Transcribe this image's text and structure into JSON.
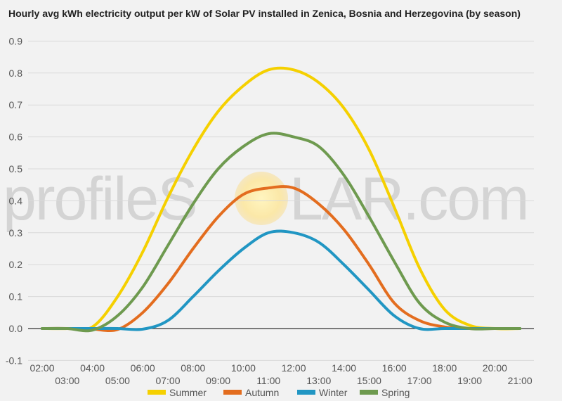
{
  "watermark": {
    "text_before": "profileS",
    "text_after": "LAR.com"
  },
  "chart_data": {
    "type": "line",
    "title": "Hourly avg kWh electricity output per kW of Solar PV installed in Zenica, Bosnia and Herzegovina (by season)",
    "xlabel": "",
    "ylabel": "",
    "x": [
      2,
      3,
      4,
      5,
      6,
      7,
      8,
      9,
      10,
      11,
      12,
      13,
      14,
      15,
      16,
      17,
      18,
      19,
      20,
      21
    ],
    "x_tick_labels": [
      "02:00",
      "03:00",
      "04:00",
      "05:00",
      "06:00",
      "07:00",
      "08:00",
      "09:00",
      "10:00",
      "11:00",
      "12:00",
      "13:00",
      "14:00",
      "15:00",
      "16:00",
      "17:00",
      "18:00",
      "19:00",
      "20:00",
      "21:00"
    ],
    "y_tick_labels": [
      "0.9",
      "0.8",
      "0.7",
      "0.6",
      "0.5",
      "0.4",
      "0.3",
      "0.2",
      "0.1",
      "0.0",
      "-0.1"
    ],
    "ylim": [
      -0.1,
      0.9
    ],
    "xlim": [
      2,
      21
    ],
    "grid": true,
    "legend_position": "bottom",
    "series": [
      {
        "name": "Summer",
        "color": "#f5d000",
        "values": [
          0,
          0,
          0.005,
          0.1,
          0.24,
          0.41,
          0.56,
          0.68,
          0.76,
          0.81,
          0.81,
          0.77,
          0.69,
          0.56,
          0.38,
          0.19,
          0.06,
          0.01,
          0,
          0
        ]
      },
      {
        "name": "Autumn",
        "color": "#e36d1f",
        "values": [
          0,
          0,
          -0.002,
          -0.003,
          0.05,
          0.14,
          0.25,
          0.35,
          0.42,
          0.44,
          0.44,
          0.39,
          0.31,
          0.2,
          0.08,
          0.025,
          0.005,
          0,
          0,
          0
        ]
      },
      {
        "name": "Winter",
        "color": "#2196c3",
        "values": [
          0,
          0,
          0,
          0,
          -0.002,
          0.025,
          0.1,
          0.18,
          0.25,
          0.3,
          0.3,
          0.27,
          0.2,
          0.12,
          0.04,
          0,
          0,
          0,
          0,
          0
        ]
      },
      {
        "name": "Spring",
        "color": "#6e9a4f",
        "values": [
          0,
          0,
          -0.005,
          0.04,
          0.13,
          0.26,
          0.39,
          0.5,
          0.57,
          0.61,
          0.6,
          0.57,
          0.48,
          0.35,
          0.21,
          0.08,
          0.02,
          0,
          0,
          0
        ]
      }
    ]
  }
}
